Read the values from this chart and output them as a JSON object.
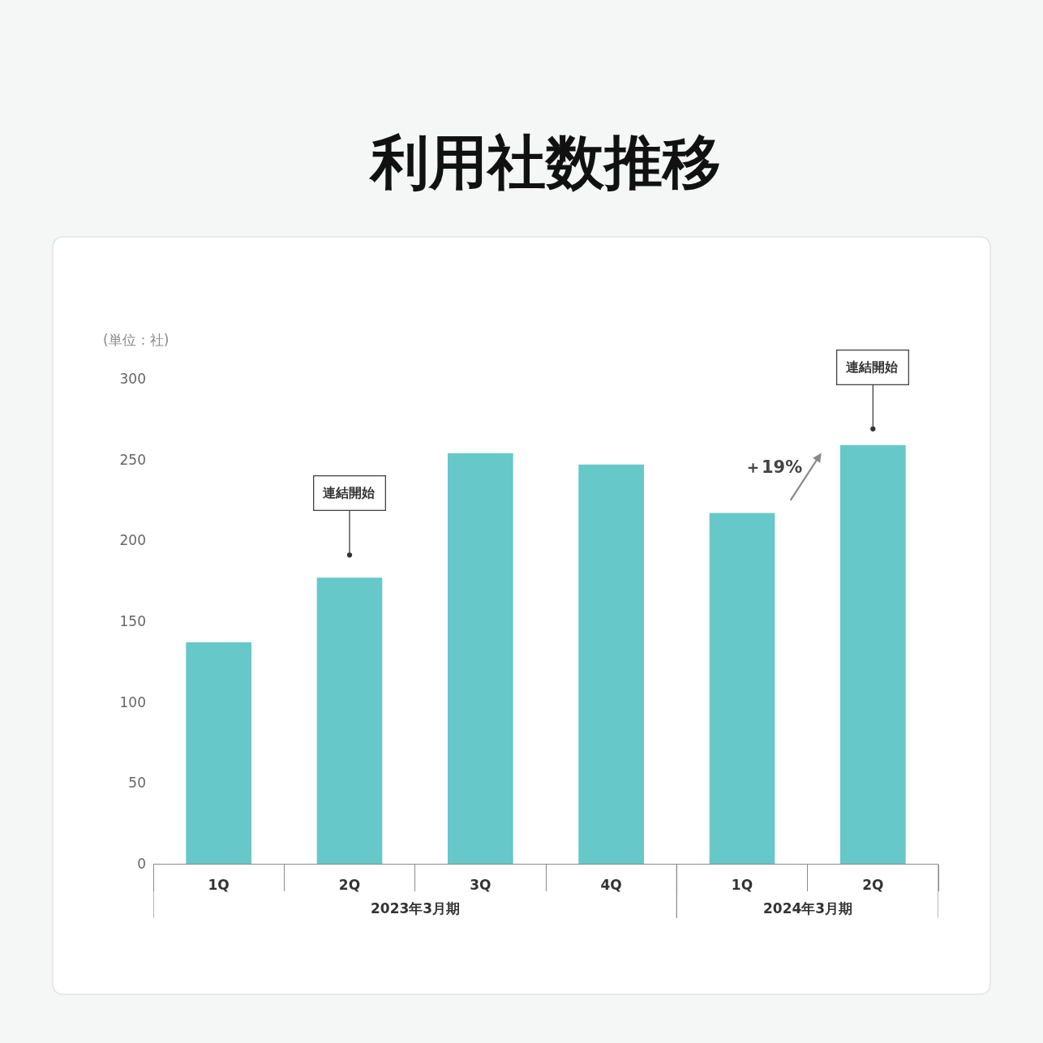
{
  "chart_data": {
    "type": "bar",
    "title": "利用社数推移",
    "ylabel": "(単位：社)",
    "categories": [
      "1Q",
      "2Q",
      "3Q",
      "4Q",
      "1Q",
      "2Q"
    ],
    "values": [
      137,
      177,
      254,
      247,
      217,
      259
    ],
    "color": "#66c8c9",
    "ylim": [
      0,
      300
    ],
    "yticks": [
      0,
      50,
      100,
      150,
      200,
      250,
      300
    ],
    "annotations": [
      "2023年3月期",
      "2024年3月期",
      {
        "text": "連結開始",
        "y": 191
      },
      {
        "text": "連結開始",
        "y": 269
      },
      "＋19%"
    ]
  }
}
